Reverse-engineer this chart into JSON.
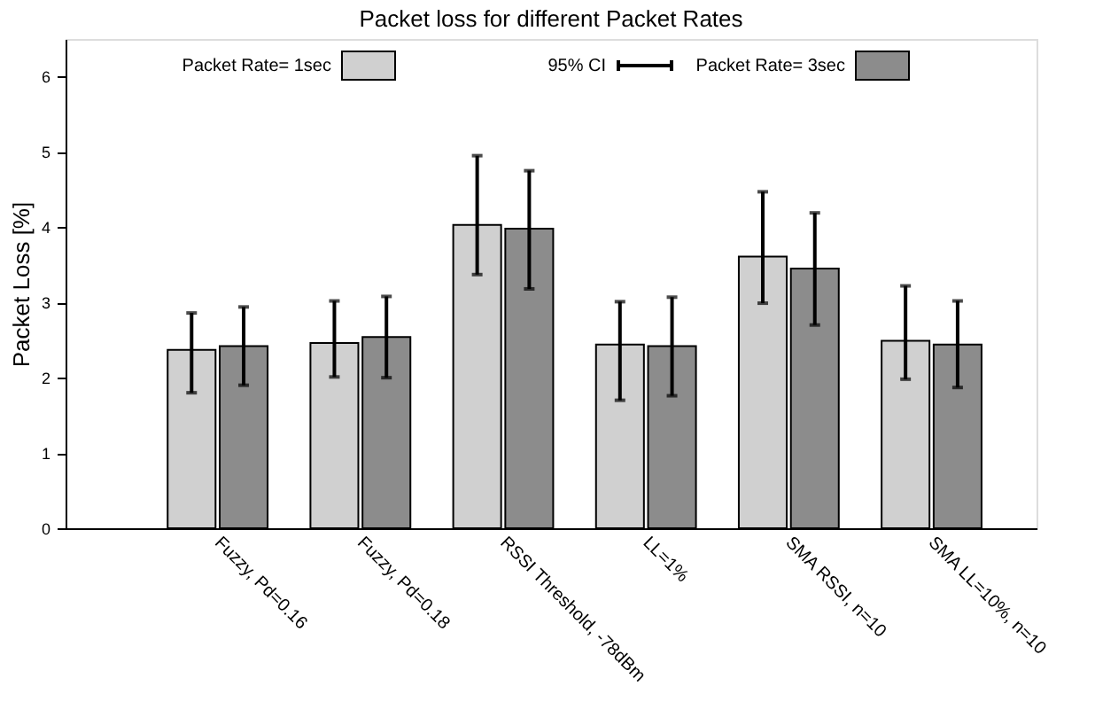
{
  "chart_data": {
    "type": "bar",
    "title": "Packet loss for different Packet Rates",
    "ylabel": "Packet Loss [%]",
    "categories": [
      "Fuzzy, Pd=0.16",
      "Fuzzy, Pd=0.18",
      "RSSI Threshold, -78dBm",
      "LL=1%",
      "SMA RSSI, n=10",
      "SMA LL=10%, n=10"
    ],
    "series": [
      {
        "name": "Packet Rate= 1sec",
        "color": "#d0d0d0",
        "values": [
          2.37,
          2.46,
          4.03,
          2.44,
          3.61,
          2.49
        ],
        "errors": [
          [
            1.8,
            2.86
          ],
          [
            2.01,
            3.02
          ],
          [
            3.37,
            4.95
          ],
          [
            1.7,
            3.01
          ],
          [
            2.99,
            4.47
          ],
          [
            1.98,
            3.22
          ]
        ]
      },
      {
        "name": "Packet Rate= 3sec",
        "color": "#8c8c8c",
        "values": [
          2.42,
          2.54,
          3.98,
          2.42,
          3.45,
          2.44
        ],
        "errors": [
          [
            1.9,
            2.94
          ],
          [
            2.0,
            3.08
          ],
          [
            3.18,
            4.75
          ],
          [
            1.76,
            3.07
          ],
          [
            2.7,
            4.19
          ],
          [
            1.87,
            3.02
          ]
        ]
      }
    ],
    "annotations": [
      "95% CI"
    ],
    "ylim": [
      0,
      6.5
    ],
    "yticks": [
      0,
      1,
      2,
      3,
      4,
      5,
      6
    ],
    "grid": false,
    "legend": "top"
  }
}
